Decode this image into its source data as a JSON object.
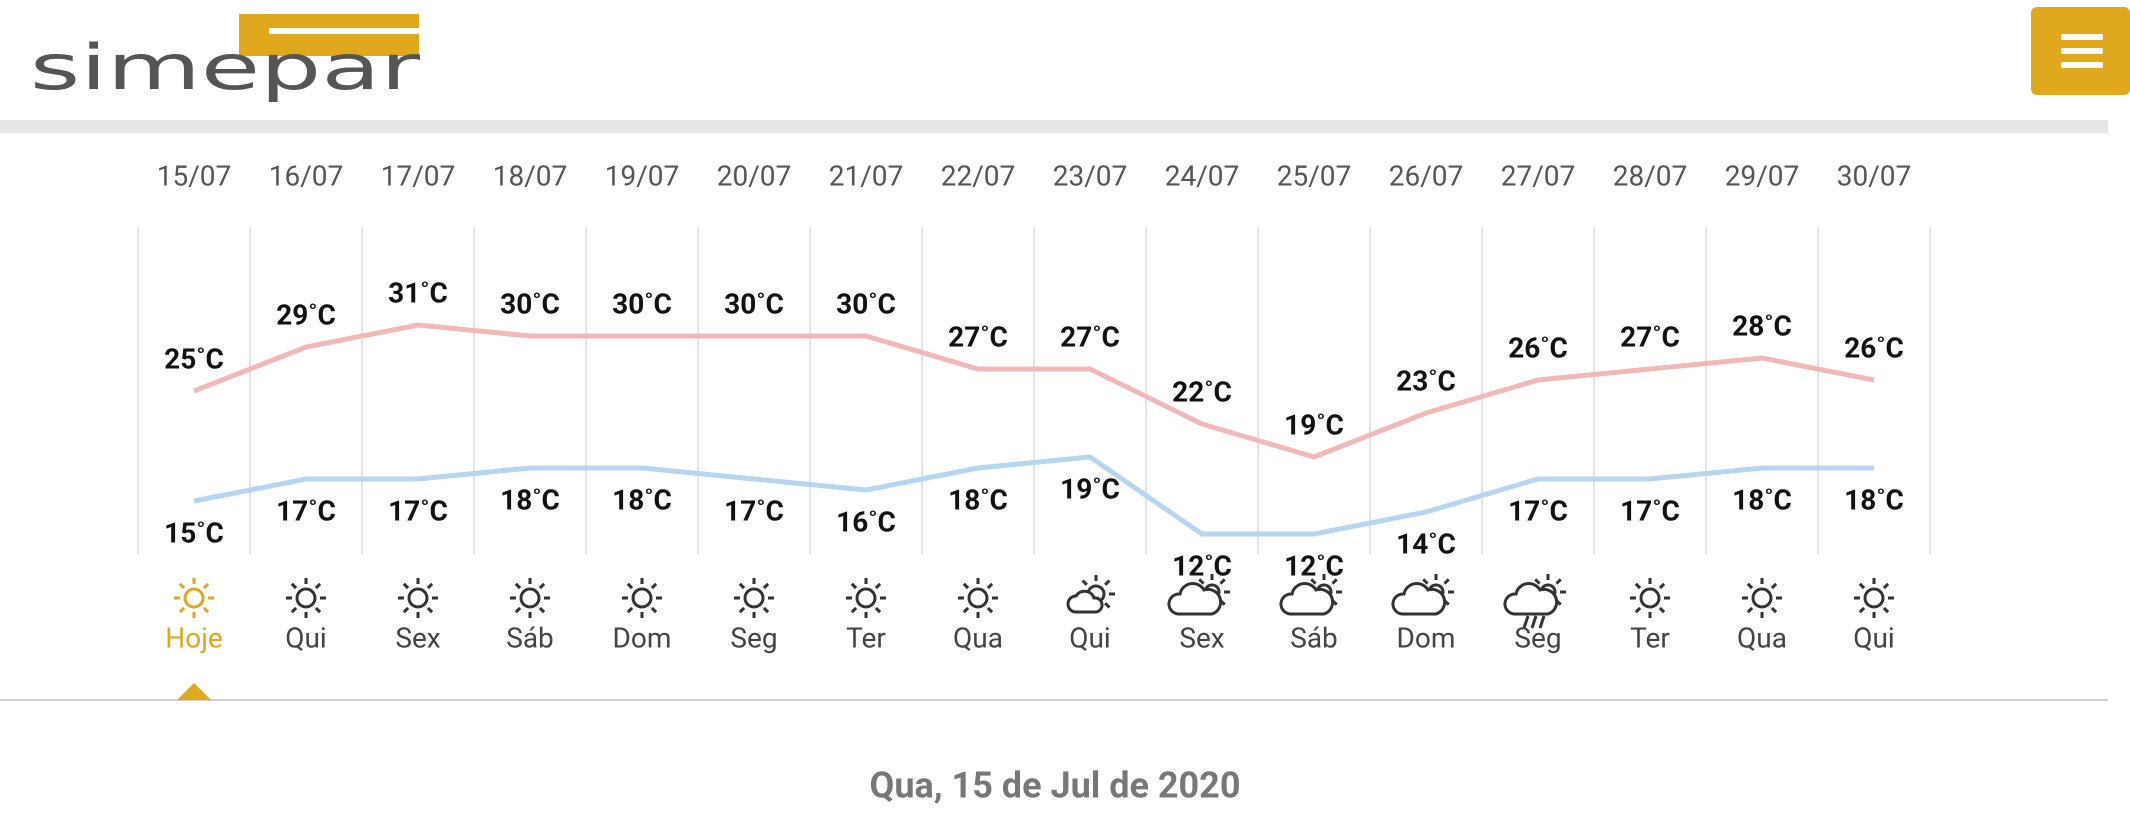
{
  "header": {
    "logo_text": "simepar"
  },
  "chart_data": {
    "type": "line",
    "categories": [
      "15/07",
      "16/07",
      "17/07",
      "18/07",
      "19/07",
      "20/07",
      "21/07",
      "22/07",
      "23/07",
      "24/07",
      "25/07",
      "26/07",
      "27/07",
      "28/07",
      "29/07",
      "30/07"
    ],
    "weekdays": [
      "Hoje",
      "Qui",
      "Sex",
      "Sáb",
      "Dom",
      "Seg",
      "Ter",
      "Qua",
      "Qui",
      "Sex",
      "Sáb",
      "Dom",
      "Seg",
      "Ter",
      "Qua",
      "Qui"
    ],
    "series": [
      {
        "color": "#f2b8b8",
        "values": [
          25,
          29,
          31,
          30,
          30,
          30,
          30,
          27,
          27,
          22,
          19,
          23,
          26,
          27,
          28,
          26
        ],
        "value_labels": [
          "25˚C",
          "29˚C",
          "31˚C",
          "30˚C",
          "30˚C",
          "30˚C",
          "30˚C",
          "27˚C",
          "27˚C",
          "22˚C",
          "19˚C",
          "23˚C",
          "26˚C",
          "27˚C",
          "28˚C",
          "26˚C"
        ]
      },
      {
        "color": "#b5d5f0",
        "values": [
          15,
          17,
          17,
          18,
          18,
          17,
          16,
          18,
          19,
          12,
          12,
          14,
          17,
          17,
          18,
          18
        ],
        "value_labels": [
          "15˚C",
          "17˚C",
          "17˚C",
          "18˚C",
          "18˚C",
          "17˚C",
          "16˚C",
          "18˚C",
          "19˚C",
          "12˚C",
          "12˚C",
          "14˚C",
          "17˚C",
          "17˚C",
          "18˚C",
          "18˚C"
        ]
      }
    ]
  },
  "selected_date": "Qua, 15 de Jul de 2020"
}
